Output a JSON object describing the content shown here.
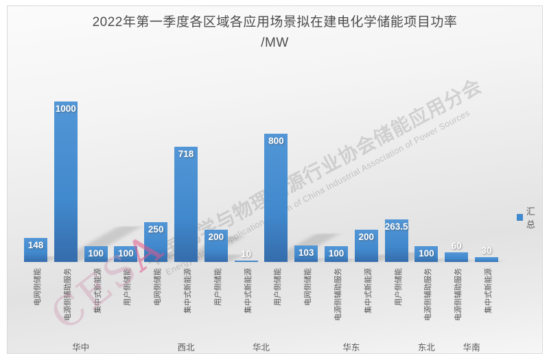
{
  "title": {
    "line1": "2022年第一季度各区域各应用场景拟在建电化学储能项目功率",
    "line2": "/MW"
  },
  "legend": {
    "label": "汇总",
    "swatch_color": "#4189cd"
  },
  "watermark": {
    "line_cn": "中国化学与物理电源行业协会储能应用分会",
    "line_en": "Energy Storage Application Branch of China Industrial Association of Power Sources",
    "logo_ces": "CES",
    "logo_a": "A"
  },
  "colors": {
    "bar_top": "#5296d6",
    "bar_mid": "#4189cd",
    "bar_bottom": "#356cab",
    "title_gray": "#4c4c4c",
    "axis_text_gray": "#575757",
    "watermark_gray": "#919191",
    "watermark_pink": "#e25a8c"
  },
  "chart_data": {
    "type": "bar",
    "title": "2022年第一季度各区域各应用场景拟在建电化学储能项目功率/MW",
    "legend": [
      "汇总"
    ],
    "ylabel": "MW",
    "ylim": [
      0,
      1100
    ],
    "axis_lines": "hidden",
    "grid": false,
    "legend_position": "right-middle",
    "groups": [
      {
        "region": "华中",
        "items": [
          {
            "category": "电网侧储能",
            "value": 148
          },
          {
            "category": "电源侧辅助服务",
            "value": 1000
          },
          {
            "category": "集中式新能源",
            "value": 100
          },
          {
            "category": "用户侧储能",
            "value": 100
          }
        ]
      },
      {
        "region": "西北",
        "items": [
          {
            "category": "电网侧储能",
            "value": 250
          },
          {
            "category": "集中式新能源",
            "value": 718
          },
          {
            "category": "用户侧储能",
            "value": 200
          }
        ]
      },
      {
        "region": "华北",
        "items": [
          {
            "category": "集中式新能源",
            "value": 10
          },
          {
            "category": "用户侧储能",
            "value": 800
          }
        ]
      },
      {
        "region": "华东",
        "items": [
          {
            "category": "电网侧储能",
            "value": 103
          },
          {
            "category": "电源侧辅助服务",
            "value": 100
          },
          {
            "category": "集中式新能源",
            "value": 200
          },
          {
            "category": "用户侧储能",
            "value": 263.5
          }
        ]
      },
      {
        "region": "东北",
        "items": [
          {
            "category": "电源侧辅助服务",
            "value": 100
          }
        ]
      },
      {
        "region": "华南",
        "items": [
          {
            "category": "电源侧辅助服务",
            "value": 60
          },
          {
            "category": "集中式新能源",
            "value": 30
          }
        ]
      }
    ]
  }
}
